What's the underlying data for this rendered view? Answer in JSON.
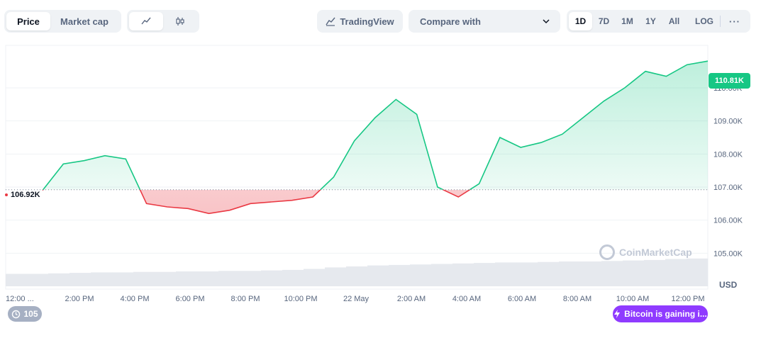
{
  "toolbar": {
    "type_tabs": [
      "Price",
      "Market cap"
    ],
    "style_icons": [
      "line-chart-icon",
      "candlestick-icon"
    ],
    "tradingview_label": "TradingView",
    "compare_label": "Compare with",
    "range_tabs": [
      "1D",
      "7D",
      "1M",
      "1Y",
      "All"
    ],
    "log_label": "LOG",
    "more_label": "···",
    "active_type": "Price",
    "active_range": "1D"
  },
  "chart": {
    "current_price_label": "110.81K",
    "reference_price_label": "106.92K",
    "currency": "USD",
    "watermark": "CoinMarketCap",
    "colors": {
      "up": "#16c784",
      "down": "#ea3943",
      "grid": "#eff2f5",
      "volume": "#e6e9ee"
    }
  },
  "chart_data": {
    "type": "line",
    "reference_price": 106.92,
    "ylabel": "USD",
    "y_ticks": [
      "105.00K",
      "106.00K",
      "107.00K",
      "108.00K",
      "109.00K",
      "110.00K"
    ],
    "ylim": [
      104.0,
      111.2
    ],
    "x_ticks": [
      "12:00 ...",
      "2:00 PM",
      "4:00 PM",
      "6:00 PM",
      "8:00 PM",
      "10:00 PM",
      "22 May",
      "2:00 AM",
      "4:00 AM",
      "6:00 AM",
      "8:00 AM",
      "10:00 AM",
      "12:00 PM"
    ],
    "x_hours": [
      0,
      0.75,
      1.5,
      2.25,
      3,
      3.75,
      4.5,
      5.25,
      6,
      6.75,
      7.5,
      8.25,
      9,
      9.75,
      10.5,
      11.25,
      12,
      12.75,
      13.5,
      14.25,
      15,
      15.75,
      16.5,
      17.25,
      18,
      18.75,
      19.5,
      20.25,
      21,
      21.75,
      22.5,
      23.25,
      24
    ],
    "y": [
      106.9,
      107.7,
      107.8,
      107.95,
      107.85,
      106.5,
      106.4,
      106.35,
      106.2,
      106.3,
      106.5,
      106.55,
      106.6,
      106.7,
      107.3,
      108.4,
      109.1,
      109.65,
      109.2,
      107.0,
      106.7,
      107.1,
      108.5,
      108.2,
      108.35,
      108.6,
      109.1,
      109.6,
      110.0,
      110.5,
      110.35,
      110.7,
      110.81
    ],
    "volume_level": [
      0.25,
      0.25,
      0.26,
      0.27,
      0.28,
      0.28,
      0.29,
      0.29,
      0.3,
      0.3,
      0.31,
      0.31,
      0.32,
      0.33,
      0.35,
      0.38,
      0.4,
      0.42,
      0.43,
      0.44,
      0.45,
      0.46,
      0.47,
      0.48,
      0.48,
      0.49,
      0.5,
      0.5,
      0.51,
      0.52,
      0.53,
      0.55,
      0.56
    ]
  },
  "footer": {
    "events_count": "105",
    "news_label": "Bitcoin is gaining i..."
  }
}
